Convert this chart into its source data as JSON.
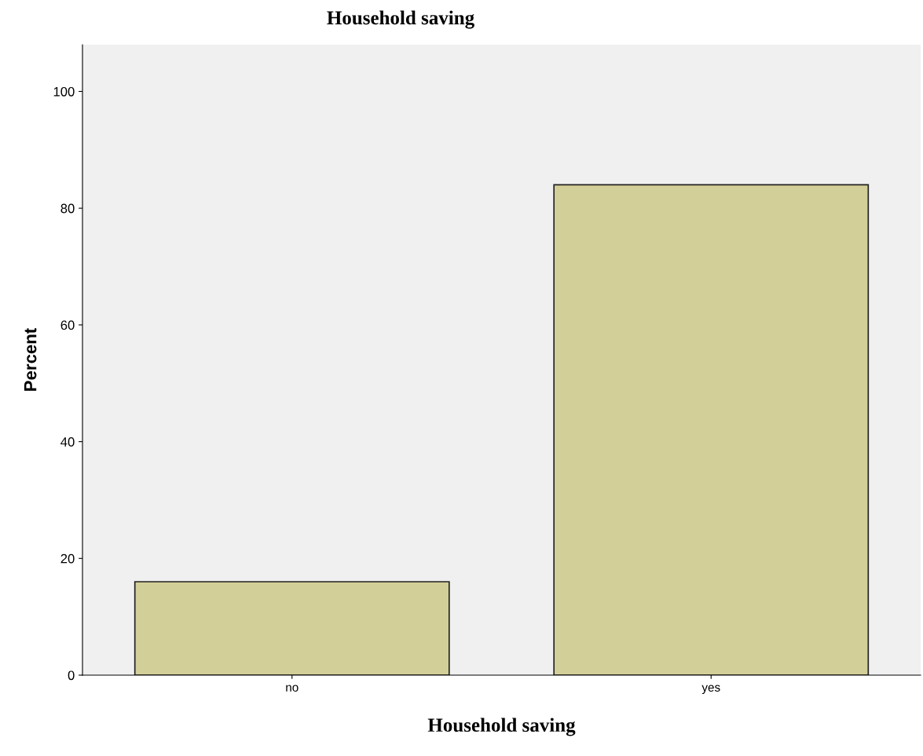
{
  "chart_data": {
    "type": "bar",
    "title": "Household saving",
    "xlabel": "Household saving",
    "ylabel": "Percent",
    "categories": [
      "no",
      "yes"
    ],
    "values": [
      16.0,
      84.0
    ],
    "color": "#d3cf98",
    "ylim": [
      0,
      108
    ],
    "yticks": [
      0,
      20,
      40,
      60,
      80,
      100
    ],
    "grid": false,
    "legend": false
  }
}
